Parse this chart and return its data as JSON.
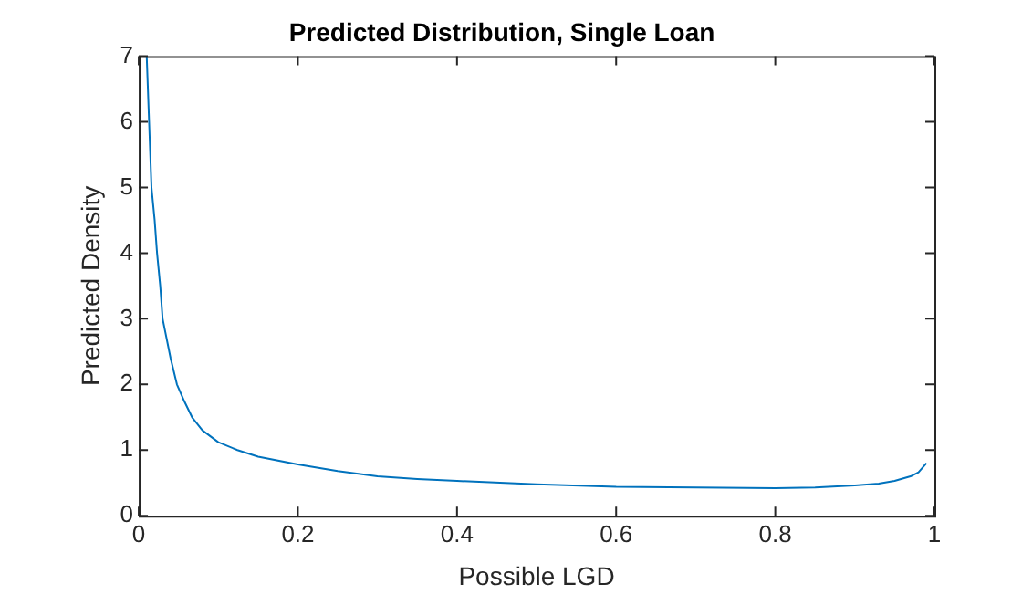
{
  "chart_data": {
    "type": "line",
    "title": "Predicted Distribution, Single Loan",
    "xlabel": "Possible LGD",
    "ylabel": "Predicted Density",
    "x": [
      0.01,
      0.013,
      0.016,
      0.02,
      0.023,
      0.027,
      0.03,
      0.04,
      0.048,
      0.057,
      0.067,
      0.08,
      0.1,
      0.124,
      0.15,
      0.2,
      0.25,
      0.3,
      0.35,
      0.4,
      0.5,
      0.6,
      0.7,
      0.8,
      0.85,
      0.9,
      0.93,
      0.95,
      0.97,
      0.98,
      0.99
    ],
    "series": [
      {
        "color": "#0072bd",
        "values": [
          7,
          6,
          5,
          4.5,
          4,
          3.5,
          3,
          2.4,
          2,
          1.75,
          1.5,
          1.3,
          1.12,
          1,
          0.9,
          0.78,
          0.68,
          0.6,
          0.56,
          0.53,
          0.48,
          0.44,
          0.43,
          0.42,
          0.43,
          0.46,
          0.49,
          0.53,
          0.6,
          0.66,
          0.8
        ]
      }
    ],
    "xlim": [
      0,
      1
    ],
    "xticks": [
      0,
      0.2,
      0.4,
      0.6,
      0.8,
      1
    ],
    "ylim": [
      0,
      7
    ],
    "yticks": [
      0,
      1,
      2,
      3,
      4,
      5,
      6,
      7
    ],
    "grid": false,
    "legend": false,
    "marker": "none",
    "line_style": "solid"
  }
}
